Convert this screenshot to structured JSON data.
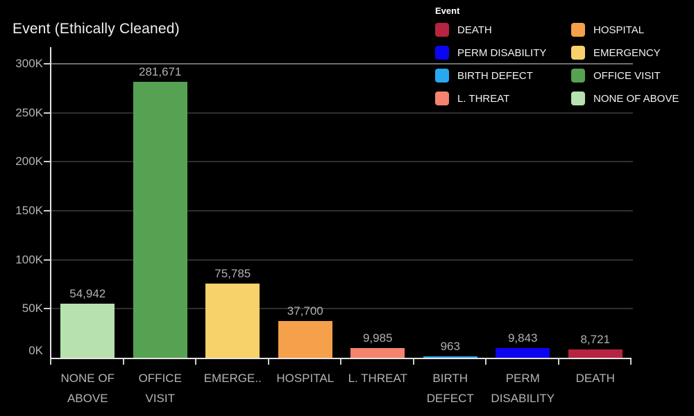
{
  "title": "Event (Ethically Cleaned)",
  "legend": {
    "title": "Event",
    "columns": [
      [
        {
          "label": "DEATH",
          "color": "#b62441"
        },
        {
          "label": "PERM DISABILITY",
          "color": "#0d04f0"
        },
        {
          "label": "BIRTH DEFECT",
          "color": "#29a7ef"
        },
        {
          "label": "L. THREAT",
          "color": "#f5846e"
        }
      ],
      [
        {
          "label": "HOSPITAL",
          "color": "#f5a04a"
        },
        {
          "label": "EMERGENCY",
          "color": "#f7d169"
        },
        {
          "label": "OFFICE VISIT",
          "color": "#56a252"
        },
        {
          "label": "NONE OF ABOVE",
          "color": "#b7e1af"
        }
      ]
    ]
  },
  "chart_data": {
    "type": "bar",
    "title": "Event (Ethically Cleaned)",
    "categories": [
      "NONE OF ABOVE",
      "OFFICE VISIT",
      "EMERGENCY",
      "HOSPITAL",
      "L. THREAT",
      "BIRTH DEFECT",
      "PERM DISABILITY",
      "DEATH"
    ],
    "category_display_lines": [
      [
        "NONE OF",
        "ABOVE"
      ],
      [
        "OFFICE",
        "VISIT"
      ],
      [
        "EMERGE.."
      ],
      [
        "HOSPITAL"
      ],
      [
        "L. THREAT"
      ],
      [
        "BIRTH",
        "DEFECT"
      ],
      [
        "PERM",
        "DISABILITY"
      ],
      [
        "DEATH"
      ]
    ],
    "values": [
      54942,
      281671,
      75785,
      37700,
      9985,
      963,
      9843,
      8721
    ],
    "value_labels": [
      "54,942",
      "281,671",
      "75,785",
      "37,700",
      "9,985",
      "963",
      "9,843",
      "8,721"
    ],
    "colors": [
      "#b7e1af",
      "#56a252",
      "#f7d169",
      "#f5a04a",
      "#f5846e",
      "#29a7ef",
      "#0d04f0",
      "#b62441"
    ],
    "xlabel": "",
    "ylabel": "",
    "ylim": [
      0,
      300000
    ],
    "ytick_labels": [
      "0K",
      "50K",
      "100K",
      "150K",
      "200K",
      "250K",
      "300K"
    ],
    "grid": "horizontal",
    "legend_position": "top-right",
    "background": "#000000"
  }
}
